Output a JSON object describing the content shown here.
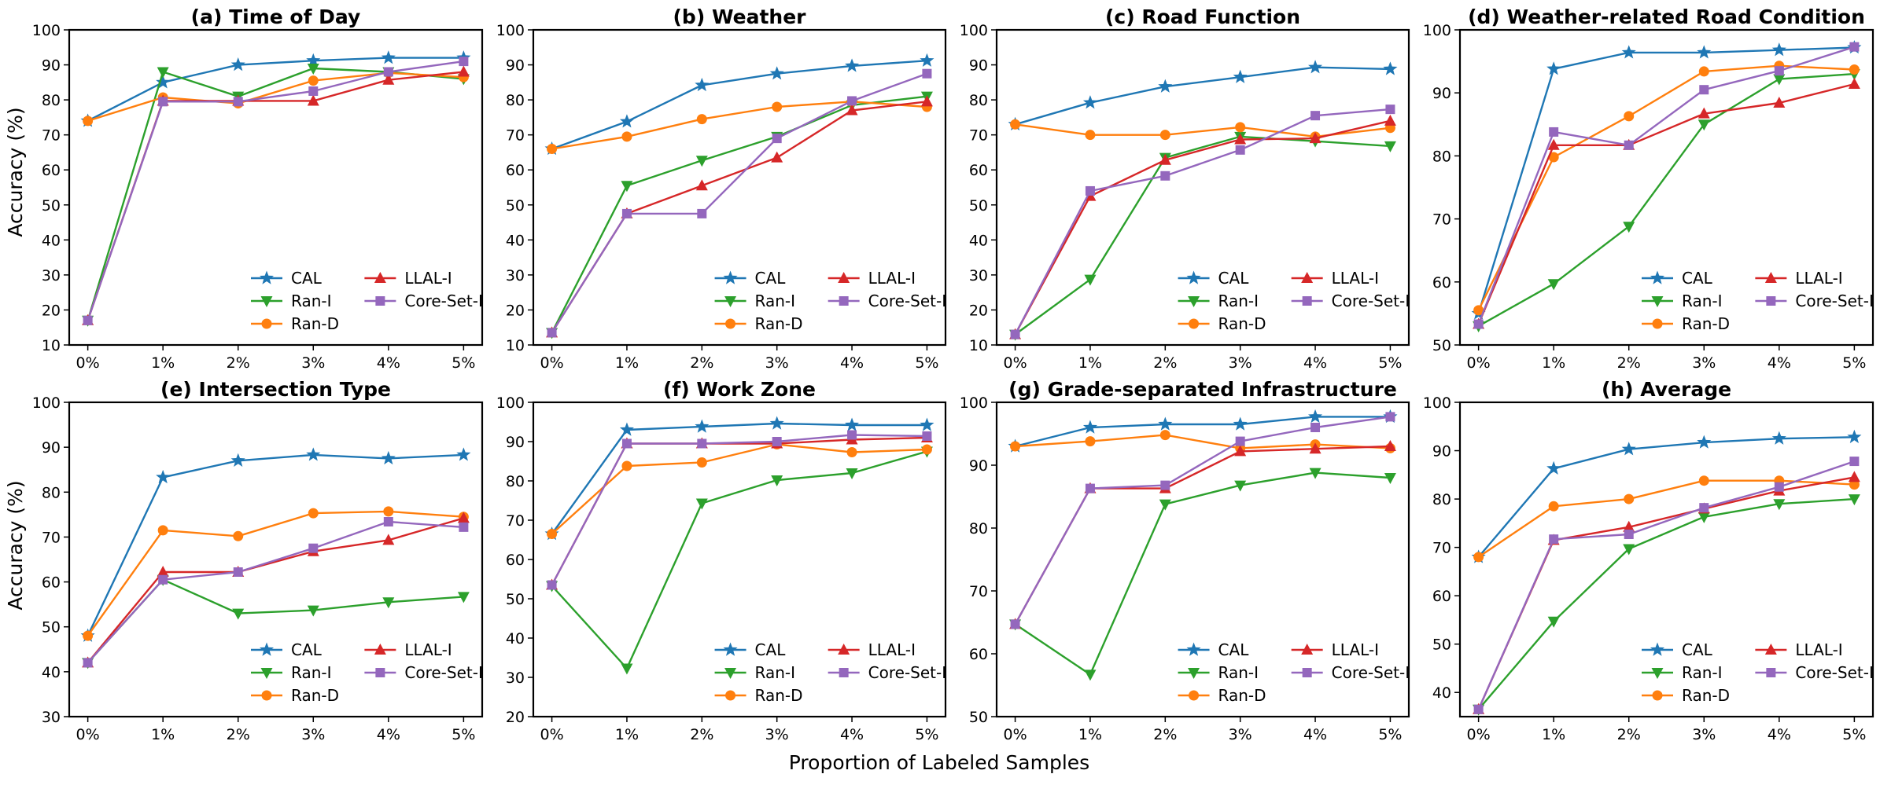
{
  "figure": {
    "xlabel": "Proportion of Labeled Samples",
    "ylabel": "Accuracy (%)"
  },
  "legend": {
    "entries": [
      "CAL",
      "Ran-I",
      "Ran-D",
      "LLAL-I",
      "Core-Set-I"
    ],
    "placement": "lower-right"
  },
  "series_style": [
    {
      "name": "CAL",
      "color": "#1f77b4",
      "marker": "star"
    },
    {
      "name": "Ran-I",
      "color": "#2ca02c",
      "marker": "triangle-down"
    },
    {
      "name": "Ran-D",
      "color": "#ff7f0e",
      "marker": "circle"
    },
    {
      "name": "LLAL-I",
      "color": "#d62728",
      "marker": "triangle-up"
    },
    {
      "name": "Core-Set-I",
      "color": "#9467bd",
      "marker": "square"
    }
  ],
  "chart_data": [
    {
      "type": "line",
      "title": "(a) Time of Day",
      "categories": [
        "0%",
        "1%",
        "2%",
        "3%",
        "4%",
        "5%"
      ],
      "ylim": [
        10,
        100
      ],
      "yticks": [
        10,
        20,
        30,
        40,
        50,
        60,
        70,
        80,
        90,
        100
      ],
      "series": [
        {
          "name": "CAL",
          "values": [
            74,
            85,
            90,
            91.2,
            92,
            92
          ]
        },
        {
          "name": "Ran-I",
          "values": [
            17,
            88,
            81,
            89,
            88,
            86
          ]
        },
        {
          "name": "Ran-D",
          "values": [
            74,
            80.7,
            79,
            85.5,
            87.7,
            86.5
          ]
        },
        {
          "name": "LLAL-I",
          "values": [
            17,
            79.7,
            79.7,
            79.7,
            85.7,
            88
          ]
        },
        {
          "name": "Core-Set-I",
          "values": [
            17,
            79.5,
            79.5,
            82.5,
            88,
            91
          ]
        }
      ]
    },
    {
      "type": "line",
      "title": "(b) Weather",
      "categories": [
        "0%",
        "1%",
        "2%",
        "3%",
        "4%",
        "5%"
      ],
      "ylim": [
        10,
        100
      ],
      "yticks": [
        10,
        20,
        30,
        40,
        50,
        60,
        70,
        80,
        90,
        100
      ],
      "series": [
        {
          "name": "CAL",
          "values": [
            66,
            73.8,
            84.2,
            87.5,
            89.7,
            91.2
          ]
        },
        {
          "name": "Ran-I",
          "values": [
            13.5,
            55.5,
            62.7,
            69.5,
            78.5,
            81
          ]
        },
        {
          "name": "Ran-D",
          "values": [
            66,
            69.5,
            74.5,
            78,
            79.5,
            78
          ]
        },
        {
          "name": "LLAL-I",
          "values": [
            13.5,
            47.5,
            55.5,
            63.5,
            77,
            79.5
          ]
        },
        {
          "name": "Core-Set-I",
          "values": [
            13.5,
            47.5,
            47.5,
            69,
            79.7,
            87.5
          ]
        }
      ]
    },
    {
      "type": "line",
      "title": "(c) Road Function",
      "categories": [
        "0%",
        "1%",
        "2%",
        "3%",
        "4%",
        "5%"
      ],
      "ylim": [
        10,
        100
      ],
      "yticks": [
        10,
        20,
        30,
        40,
        50,
        60,
        70,
        80,
        90,
        100
      ],
      "series": [
        {
          "name": "CAL",
          "values": [
            73,
            79.2,
            83.8,
            86.5,
            89.3,
            88.8
          ]
        },
        {
          "name": "Ran-I",
          "values": [
            13,
            28.7,
            63.5,
            69.5,
            68.2,
            66.8
          ]
        },
        {
          "name": "Ran-D",
          "values": [
            73,
            70,
            70,
            72.2,
            69.5,
            72
          ]
        },
        {
          "name": "LLAL-I",
          "values": [
            13,
            52.5,
            62.8,
            68.7,
            69,
            74
          ]
        },
        {
          "name": "Core-Set-I",
          "values": [
            13,
            54,
            58.3,
            65.7,
            75.5,
            77.3
          ]
        }
      ]
    },
    {
      "type": "line",
      "title": "(d) Weather-related Road Condition",
      "categories": [
        "0%",
        "1%",
        "2%",
        "3%",
        "4%",
        "5%"
      ],
      "ylim": [
        50,
        100
      ],
      "yticks": [
        50,
        60,
        70,
        80,
        90,
        100
      ],
      "series": [
        {
          "name": "CAL",
          "values": [
            55,
            93.8,
            96.4,
            96.4,
            96.8,
            97.2
          ]
        },
        {
          "name": "Ran-I",
          "values": [
            53,
            59.7,
            68.8,
            85,
            92.2,
            93
          ]
        },
        {
          "name": "Ran-D",
          "values": [
            55.5,
            79.8,
            86.3,
            93.4,
            94.3,
            93.7
          ]
        },
        {
          "name": "LLAL-I",
          "values": [
            53.3,
            81.7,
            81.7,
            86.7,
            88.4,
            91.4
          ]
        },
        {
          "name": "Core-Set-I",
          "values": [
            53.3,
            83.8,
            81.7,
            90.5,
            93.5,
            97.3
          ]
        }
      ]
    },
    {
      "type": "line",
      "title": "(e) Intersection Type",
      "categories": [
        "0%",
        "1%",
        "2%",
        "3%",
        "4%",
        "5%"
      ],
      "ylim": [
        30,
        100
      ],
      "yticks": [
        30,
        40,
        50,
        60,
        70,
        80,
        90,
        100
      ],
      "series": [
        {
          "name": "CAL",
          "values": [
            48,
            83.3,
            87,
            88.3,
            87.5,
            88.3
          ]
        },
        {
          "name": "Ran-I",
          "values": [
            42,
            60.5,
            53,
            53.7,
            55.5,
            56.7
          ]
        },
        {
          "name": "Ran-D",
          "values": [
            48,
            71.5,
            70.2,
            75.3,
            75.7,
            74.5
          ]
        },
        {
          "name": "LLAL-I",
          "values": [
            42,
            62.2,
            62.2,
            66.8,
            69.3,
            74.2
          ]
        },
        {
          "name": "Core-Set-I",
          "values": [
            42,
            60.5,
            62.2,
            67.5,
            73.4,
            72.2
          ]
        }
      ]
    },
    {
      "type": "line",
      "title": "(f) Work Zone",
      "categories": [
        "0%",
        "1%",
        "2%",
        "3%",
        "4%",
        "5%"
      ],
      "ylim": [
        20,
        100
      ],
      "yticks": [
        20,
        30,
        40,
        50,
        60,
        70,
        80,
        90,
        100
      ],
      "series": [
        {
          "name": "CAL",
          "values": [
            66.5,
            93,
            93.8,
            94.6,
            94.2,
            94.2
          ]
        },
        {
          "name": "Ran-I",
          "values": [
            53.3,
            32.3,
            74.3,
            80.2,
            82,
            87.5
          ]
        },
        {
          "name": "Ran-D",
          "values": [
            66.5,
            83.8,
            84.7,
            89.3,
            87.3,
            88
          ]
        },
        {
          "name": "LLAL-I",
          "values": [
            53.5,
            89.5,
            89.5,
            89.5,
            90.5,
            91
          ]
        },
        {
          "name": "Core-Set-I",
          "values": [
            53.5,
            89.5,
            89.5,
            90,
            91.7,
            91.4
          ]
        }
      ]
    },
    {
      "type": "line",
      "title": "(g) Grade-separated Infrastructure",
      "categories": [
        "0%",
        "1%",
        "2%",
        "3%",
        "4%",
        "5%"
      ],
      "ylim": [
        50,
        100
      ],
      "yticks": [
        50,
        60,
        70,
        80,
        90,
        100
      ],
      "series": [
        {
          "name": "CAL",
          "values": [
            93,
            96,
            96.5,
            96.5,
            97.7,
            97.7
          ]
        },
        {
          "name": "Ran-I",
          "values": [
            64.7,
            56.7,
            83.8,
            86.8,
            88.8,
            88
          ]
        },
        {
          "name": "Ran-D",
          "values": [
            93,
            93.8,
            94.8,
            92.7,
            93.3,
            92.7
          ]
        },
        {
          "name": "LLAL-I",
          "values": [
            64.7,
            86.3,
            86.3,
            92.2,
            92.6,
            93
          ]
        },
        {
          "name": "Core-Set-I",
          "values": [
            64.7,
            86.3,
            86.8,
            93.8,
            96,
            97.7
          ]
        }
      ]
    },
    {
      "type": "line",
      "title": "(h) Average",
      "categories": [
        "0%",
        "1%",
        "2%",
        "3%",
        "4%",
        "5%"
      ],
      "ylim": [
        35,
        100
      ],
      "yticks": [
        40,
        50,
        60,
        70,
        80,
        90,
        100
      ],
      "series": [
        {
          "name": "CAL",
          "values": [
            68,
            86.3,
            90.3,
            91.7,
            92.5,
            92.8
          ]
        },
        {
          "name": "Ran-I",
          "values": [
            36.5,
            54.7,
            69.7,
            76.3,
            79,
            80
          ]
        },
        {
          "name": "Ran-D",
          "values": [
            68,
            78.5,
            80,
            83.8,
            83.8,
            83
          ]
        },
        {
          "name": "LLAL-I",
          "values": [
            36.5,
            71.5,
            74.2,
            78,
            81.7,
            84.5
          ]
        },
        {
          "name": "Core-Set-I",
          "values": [
            36.5,
            71.7,
            72.7,
            78.2,
            82.5,
            87.8
          ]
        }
      ]
    }
  ]
}
